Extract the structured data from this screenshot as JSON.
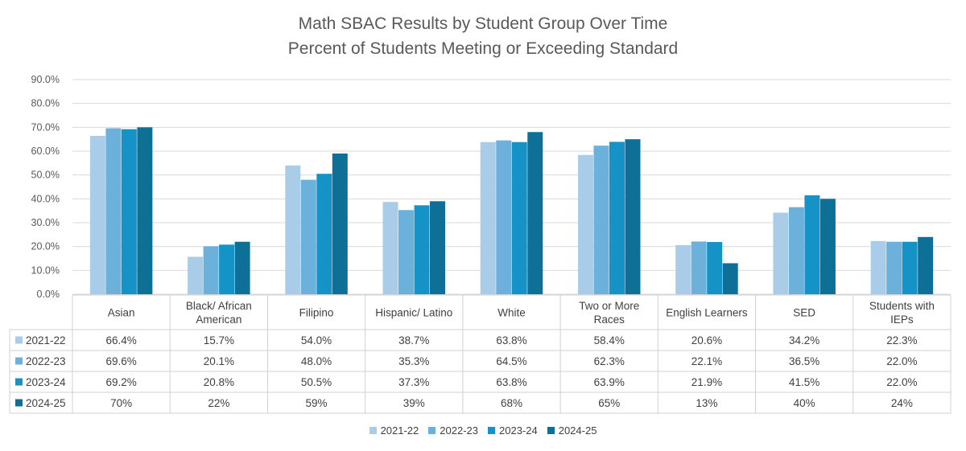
{
  "chart_data": {
    "type": "bar",
    "title": "Math SBAC Results by Student Group Over Time",
    "subtitle": "Percent of Students Meeting or Exceeding Standard",
    "categories": [
      [
        "Asian"
      ],
      [
        "Black/ African",
        "American"
      ],
      [
        "Filipino"
      ],
      [
        "Hispanic/ Latino"
      ],
      [
        "White"
      ],
      [
        "Two or More",
        "Races"
      ],
      [
        "English Learners"
      ],
      [
        "SED"
      ],
      [
        "Students with",
        "IEPs"
      ]
    ],
    "ylim": [
      0,
      90
    ],
    "yticks": [
      "0.0%",
      "10.0%",
      "20.0%",
      "30.0%",
      "40.0%",
      "50.0%",
      "60.0%",
      "70.0%",
      "80.0%",
      "90.0%"
    ],
    "grid": true,
    "legend_position": "bottom",
    "series": [
      {
        "name": "2021-22",
        "color": "#a9cde8",
        "values": [
          66.4,
          15.7,
          54.0,
          38.7,
          63.8,
          58.4,
          20.6,
          34.2,
          22.3
        ],
        "labels": [
          "66.4%",
          "15.7%",
          "54.0%",
          "38.7%",
          "63.8%",
          "58.4%",
          "20.6%",
          "34.2%",
          "22.3%"
        ]
      },
      {
        "name": "2022-23",
        "color": "#6cb0dc",
        "values": [
          69.6,
          20.1,
          48.0,
          35.3,
          64.5,
          62.3,
          22.1,
          36.5,
          22.0
        ],
        "labels": [
          "69.6%",
          "20.1%",
          "48.0%",
          "35.3%",
          "64.5%",
          "62.3%",
          "22.1%",
          "36.5%",
          "22.0%"
        ]
      },
      {
        "name": "2023-24",
        "color": "#1593c6",
        "values": [
          69.2,
          20.8,
          50.5,
          37.3,
          63.8,
          63.9,
          21.9,
          41.5,
          22.0
        ],
        "labels": [
          "69.2%",
          "20.8%",
          "50.5%",
          "37.3%",
          "63.8%",
          "63.9%",
          "21.9%",
          "41.5%",
          "22.0%"
        ]
      },
      {
        "name": "2024-25",
        "color": "#0e6f97",
        "values": [
          70,
          22,
          59,
          39,
          68,
          65,
          13,
          40,
          24
        ],
        "labels": [
          "70%",
          "22%",
          "59%",
          "39%",
          "68%",
          "65%",
          "13%",
          "40%",
          "24%"
        ]
      }
    ]
  }
}
